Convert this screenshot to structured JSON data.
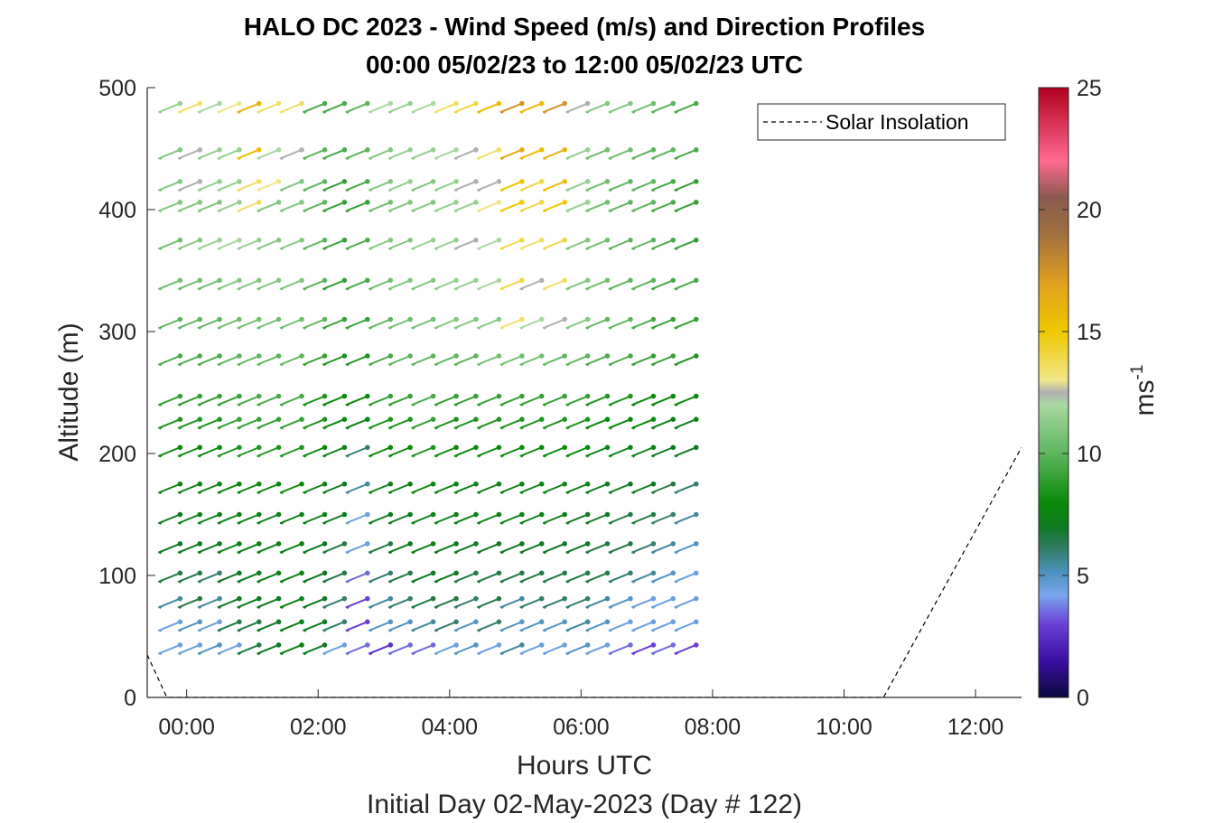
{
  "chart_data": {
    "type": "wind-barb-profile",
    "title_line1": "HALO DC 2023 - Wind Speed (m/s) and Direction Profiles",
    "title_line2": "00:00 05/02/23 to 12:00 05/02/23  UTC",
    "xlabel": "Hours UTC",
    "subxlabel": "Initial Day 02-May-2023 (Day # 122)",
    "ylabel": "Altitude (m)",
    "xlim": [
      -0.6,
      12.7
    ],
    "ylim": [
      0,
      500
    ],
    "xticks": [
      0,
      2,
      4,
      6,
      8,
      10,
      12
    ],
    "xtick_labels": [
      "00:00",
      "02:00",
      "04:00",
      "06:00",
      "08:00",
      "10:00",
      "12:00"
    ],
    "yticks": [
      0,
      100,
      200,
      300,
      400,
      500
    ],
    "ytick_labels": [
      "0",
      "100",
      "200",
      "300",
      "400",
      "500"
    ],
    "colorbar": {
      "label": "ms",
      "label_superscript": "-1",
      "range": [
        0,
        25
      ],
      "ticks": [
        0,
        5,
        10,
        15,
        20,
        25
      ],
      "tick_labels": [
        "0",
        "5",
        "10",
        "15",
        "20",
        "25"
      ],
      "colors": [
        {
          "v": 0,
          "c": "#0a0a3c"
        },
        {
          "v": 1.5,
          "c": "#3a0ea0"
        },
        {
          "v": 3,
          "c": "#6a3fd6"
        },
        {
          "v": 4.2,
          "c": "#7aa6ee"
        },
        {
          "v": 5.2,
          "c": "#4a90b8"
        },
        {
          "v": 6.2,
          "c": "#2f7a5c"
        },
        {
          "v": 7,
          "c": "#0e7a22"
        },
        {
          "v": 8,
          "c": "#0a8a0a"
        },
        {
          "v": 10,
          "c": "#5fb55f"
        },
        {
          "v": 12,
          "c": "#a8d8a0"
        },
        {
          "v": 12.5,
          "c": "#b0b0b0"
        },
        {
          "v": 13,
          "c": "#f0e68c"
        },
        {
          "v": 15,
          "c": "#eec900"
        },
        {
          "v": 17,
          "c": "#e0a020"
        },
        {
          "v": 19,
          "c": "#a07040"
        },
        {
          "v": 20.5,
          "c": "#8a5a50"
        },
        {
          "v": 22,
          "c": "#ff6a90"
        },
        {
          "v": 25,
          "c": "#b0001e"
        }
      ]
    },
    "legend": {
      "label": "Solar Insolation",
      "placement": "top-right"
    },
    "solar_insolation": {
      "x": [
        -0.6,
        -0.3,
        10.6,
        12.7
      ],
      "y": [
        35,
        0,
        0,
        205
      ]
    },
    "barbs": {
      "times": [
        -0.1,
        0.2,
        0.5,
        0.8,
        1.1,
        1.4,
        1.75,
        2.1,
        2.4,
        2.75,
        3.1,
        3.4,
        3.75,
        4.1,
        4.4,
        4.75,
        5.1,
        5.4,
        5.75,
        6.1,
        6.4,
        6.75,
        7.1,
        7.4,
        7.75
      ],
      "levels": [
        {
          "alt": 43,
          "speeds": [
            4.5,
            4.5,
            5,
            4.5,
            6.5,
            7,
            7.5,
            7,
            4.5,
            3.5,
            2.5,
            3.5,
            3.5,
            4.5,
            5,
            4.5,
            5.5,
            4.5,
            4.5,
            5,
            4.5,
            3.5,
            3,
            3.5,
            3
          ]
        },
        {
          "alt": 62,
          "speeds": [
            4.5,
            5,
            4.5,
            6.5,
            6.5,
            7,
            7.5,
            7,
            6,
            3,
            5,
            5,
            5.5,
            6,
            5,
            6,
            5,
            5,
            5,
            5.5,
            5,
            4.5,
            4.5,
            4.5,
            4.5
          ]
        },
        {
          "alt": 81,
          "speeds": [
            5.5,
            6.5,
            5.5,
            7,
            7,
            7,
            7.5,
            7,
            6,
            3,
            5.5,
            6,
            6.5,
            6.5,
            6,
            6.5,
            5.5,
            6,
            6,
            6,
            5.5,
            5,
            4.5,
            4.5,
            4.5
          ]
        },
        {
          "alt": 102,
          "speeds": [
            6.5,
            6.5,
            6,
            7,
            7,
            7.5,
            7.5,
            7,
            6.5,
            3.5,
            6,
            6.5,
            7,
            7,
            6.5,
            6.5,
            6.5,
            6.5,
            6.5,
            6.5,
            6.5,
            6,
            5.5,
            5,
            4.5
          ]
        },
        {
          "alt": 126,
          "speeds": [
            7,
            7,
            7,
            7.5,
            7.5,
            7.5,
            7.5,
            7,
            6.5,
            4.5,
            6.5,
            7,
            7.5,
            7,
            7,
            7,
            7,
            7,
            7,
            7,
            6.5,
            6.5,
            6,
            5.5,
            5
          ]
        },
        {
          "alt": 150,
          "speeds": [
            7,
            7.5,
            7.5,
            7.5,
            7.5,
            7.5,
            7.5,
            7.5,
            7,
            4.5,
            7,
            7,
            7.5,
            7.5,
            7.5,
            7.5,
            7.5,
            7.5,
            7.5,
            7,
            7,
            6.5,
            6.5,
            6,
            5.5
          ]
        },
        {
          "alt": 175,
          "speeds": [
            7.5,
            7.5,
            7.5,
            8,
            8,
            8,
            8,
            7.5,
            7,
            5.5,
            7.5,
            7.5,
            8,
            7.5,
            7.5,
            7.5,
            7.5,
            7.5,
            7.5,
            7.5,
            7,
            7,
            7,
            6.5,
            6
          ]
        },
        {
          "alt": 205,
          "speeds": [
            8,
            8,
            8,
            8.5,
            8.5,
            8.5,
            8.5,
            8,
            7.5,
            6,
            8,
            8,
            8.5,
            8,
            8,
            8,
            8,
            8,
            8,
            8,
            7.5,
            7.5,
            7.5,
            7,
            7
          ]
        },
        {
          "alt": 228,
          "speeds": [
            8.5,
            8.5,
            8.5,
            9,
            9,
            9,
            9,
            8.5,
            8,
            7.5,
            8.5,
            8.5,
            9,
            8.5,
            8.5,
            8.5,
            8.5,
            8.5,
            8.5,
            8.5,
            8,
            8,
            8,
            7.5,
            7.5
          ]
        },
        {
          "alt": 247,
          "speeds": [
            9,
            9,
            9,
            9,
            9.5,
            9.5,
            9.5,
            8.5,
            8,
            8,
            9,
            9,
            9.5,
            9,
            9,
            9,
            9,
            9,
            9,
            9,
            8.5,
            8.5,
            8,
            8,
            8
          ]
        },
        {
          "alt": 280,
          "speeds": [
            9.5,
            9.5,
            9.5,
            10,
            10,
            10,
            10,
            9,
            8.5,
            8.5,
            9.5,
            10,
            10,
            10,
            10,
            10.5,
            10.5,
            10.5,
            10,
            10,
            9.5,
            9.5,
            9,
            9,
            8.5
          ]
        },
        {
          "alt": 310,
          "speeds": [
            10,
            10,
            10,
            10.5,
            10.5,
            10.5,
            10.5,
            10,
            9,
            9,
            10,
            10.5,
            10.5,
            11,
            11,
            11,
            13.5,
            12,
            12.5,
            11,
            10,
            10,
            9.5,
            9,
            9
          ]
        },
        {
          "alt": 342,
          "speeds": [
            10.5,
            10.5,
            10.5,
            11,
            11,
            11,
            11,
            10,
            9,
            9.5,
            10.5,
            11,
            11,
            11.5,
            11.5,
            12,
            14,
            12.5,
            13.5,
            11,
            10.5,
            10,
            10,
            9.5,
            9.5
          ]
        },
        {
          "alt": 375,
          "speeds": [
            10.5,
            11,
            11.5,
            12,
            11.5,
            11,
            11,
            10,
            9,
            9.5,
            11,
            11,
            11.5,
            11.5,
            12.5,
            12,
            14,
            13.5,
            14,
            11,
            10.5,
            10,
            10,
            9.5,
            9
          ]
        },
        {
          "alt": 406,
          "speeds": [
            11,
            11,
            11,
            11.5,
            13.5,
            11,
            11,
            10,
            9,
            9,
            10.5,
            11,
            11,
            11.5,
            11.5,
            13,
            15,
            14,
            15,
            11.5,
            10.5,
            10,
            10,
            9.5,
            9
          ]
        },
        {
          "alt": 423,
          "speeds": [
            11,
            12.5,
            11.5,
            11.5,
            13.5,
            13,
            11,
            10,
            9,
            9.5,
            11,
            11.5,
            11,
            11.5,
            12.5,
            12.5,
            15,
            14,
            15.5,
            11.5,
            10.5,
            10,
            10,
            9.5,
            9
          ]
        },
        {
          "alt": 449,
          "speeds": [
            11,
            12.5,
            11.5,
            11.5,
            15.5,
            12,
            12.5,
            10,
            9.5,
            10,
            11,
            11.5,
            11.5,
            12,
            12.5,
            13.5,
            16.5,
            15.5,
            16,
            11.5,
            10.5,
            10.5,
            10,
            10,
            9.5
          ]
        },
        {
          "alt": 487,
          "speeds": [
            11.5,
            13.5,
            12,
            13,
            16,
            13.5,
            13.5,
            9.5,
            9.5,
            10,
            12,
            11.5,
            12,
            13.5,
            14,
            15.5,
            17.5,
            15.5,
            17.5,
            12.5,
            11,
            11,
            10.5,
            10,
            9.5
          ]
        }
      ]
    }
  }
}
